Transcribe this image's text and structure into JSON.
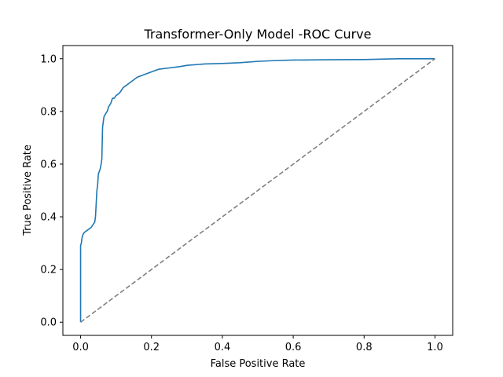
{
  "chart_data": {
    "type": "line",
    "title": "Transformer-Only Model -ROC Curve",
    "xlabel": "False Positive Rate",
    "ylabel": "True Positive Rate",
    "xlim": [
      -0.05,
      1.05
    ],
    "ylim": [
      -0.05,
      1.05
    ],
    "grid": false,
    "x_ticks": [
      0.0,
      0.2,
      0.4,
      0.6,
      0.8,
      1.0
    ],
    "x_tick_labels": [
      "0.0",
      "0.2",
      "0.4",
      "0.6",
      "0.8",
      "1.0"
    ],
    "y_ticks": [
      0.0,
      0.2,
      0.4,
      0.6,
      0.8,
      1.0
    ],
    "y_tick_labels": [
      "0.0",
      "0.2",
      "0.4",
      "0.6",
      "0.8",
      "1.0"
    ],
    "series": [
      {
        "color": "#1f77b4",
        "style": "solid",
        "x": [
          0.0,
          0.0,
          0.002,
          0.004,
          0.006,
          0.01,
          0.02,
          0.03,
          0.035,
          0.04,
          0.042,
          0.044,
          0.046,
          0.048,
          0.05,
          0.052,
          0.055,
          0.058,
          0.06,
          0.062,
          0.064,
          0.066,
          0.07,
          0.075,
          0.08,
          0.085,
          0.09,
          0.095,
          0.1,
          0.11,
          0.12,
          0.13,
          0.14,
          0.16,
          0.18,
          0.2,
          0.22,
          0.25,
          0.28,
          0.3,
          0.35,
          0.4,
          0.45,
          0.5,
          0.55,
          0.6,
          0.7,
          0.8,
          0.87,
          0.9,
          1.0
        ],
        "y": [
          0.0,
          0.29,
          0.3,
          0.32,
          0.33,
          0.34,
          0.35,
          0.36,
          0.37,
          0.38,
          0.4,
          0.45,
          0.5,
          0.52,
          0.56,
          0.57,
          0.58,
          0.6,
          0.62,
          0.74,
          0.76,
          0.78,
          0.79,
          0.8,
          0.82,
          0.83,
          0.85,
          0.85,
          0.86,
          0.87,
          0.89,
          0.9,
          0.91,
          0.93,
          0.94,
          0.95,
          0.96,
          0.965,
          0.97,
          0.975,
          0.98,
          0.982,
          0.985,
          0.99,
          0.993,
          0.995,
          0.996,
          0.997,
          0.999,
          1.0,
          1.0
        ]
      },
      {
        "color": "#808080",
        "style": "dashed",
        "x": [
          0.0,
          1.0
        ],
        "y": [
          0.0,
          1.0
        ]
      }
    ]
  }
}
